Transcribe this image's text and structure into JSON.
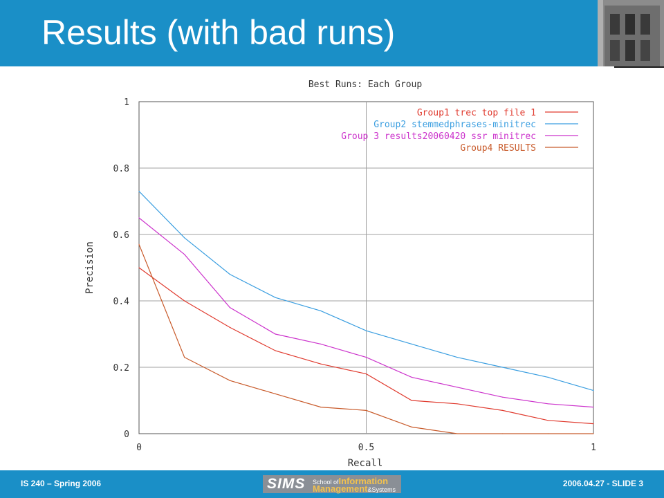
{
  "slide": {
    "title": "Results (with bad runs)",
    "footer_left": "IS 240 – Spring 2006",
    "footer_right": "2006.04.27 - SLIDE 3",
    "logo": {
      "sims": "SIMS",
      "school_of": "School of",
      "information": "Information",
      "management": "Management",
      "and_systems": "&Systems"
    }
  },
  "colors": {
    "header_blue": "#1a8fc7",
    "series_red": "#e03a2e",
    "series_blue": "#3a9ee0",
    "series_magenta": "#cc33cc",
    "series_orange": "#c85a2a",
    "grid": "#a0a0a0",
    "text": "#333333"
  },
  "chart_data": {
    "type": "line",
    "title": "Best Runs: Each Group",
    "xlabel": "Recall",
    "ylabel": "Precision",
    "xlim": [
      0,
      1
    ],
    "ylim": [
      0,
      1
    ],
    "x_ticks": [
      "0",
      "0.5",
      "1"
    ],
    "y_ticks": [
      "0",
      "0.2",
      "0.4",
      "0.6",
      "0.8",
      "1"
    ],
    "grid": true,
    "legend_position": "top-right",
    "x": [
      0,
      0.1,
      0.2,
      0.3,
      0.4,
      0.5,
      0.6,
      0.7,
      0.8,
      0.9,
      1.0
    ],
    "series": [
      {
        "name": "Group1 trec top file 1",
        "color": "#e03a2e",
        "values": [
          0.5,
          0.4,
          0.32,
          0.25,
          0.21,
          0.18,
          0.1,
          0.09,
          0.07,
          0.04,
          0.03
        ]
      },
      {
        "name": "Group2 stemmedphrases-minitrec",
        "color": "#3a9ee0",
        "values": [
          0.73,
          0.59,
          0.48,
          0.41,
          0.37,
          0.31,
          0.27,
          0.23,
          0.2,
          0.17,
          0.13
        ]
      },
      {
        "name": "Group 3 results20060420 ssr minitrec",
        "color": "#cc33cc",
        "values": [
          0.65,
          0.54,
          0.38,
          0.3,
          0.27,
          0.23,
          0.17,
          0.14,
          0.11,
          0.09,
          0.08
        ]
      },
      {
        "name": "Group4 RESULTS",
        "color": "#c85a2a",
        "values": [
          0.57,
          0.23,
          0.16,
          0.12,
          0.08,
          0.07,
          0.02,
          0.0,
          0.0,
          0.0,
          0.0
        ]
      }
    ]
  }
}
